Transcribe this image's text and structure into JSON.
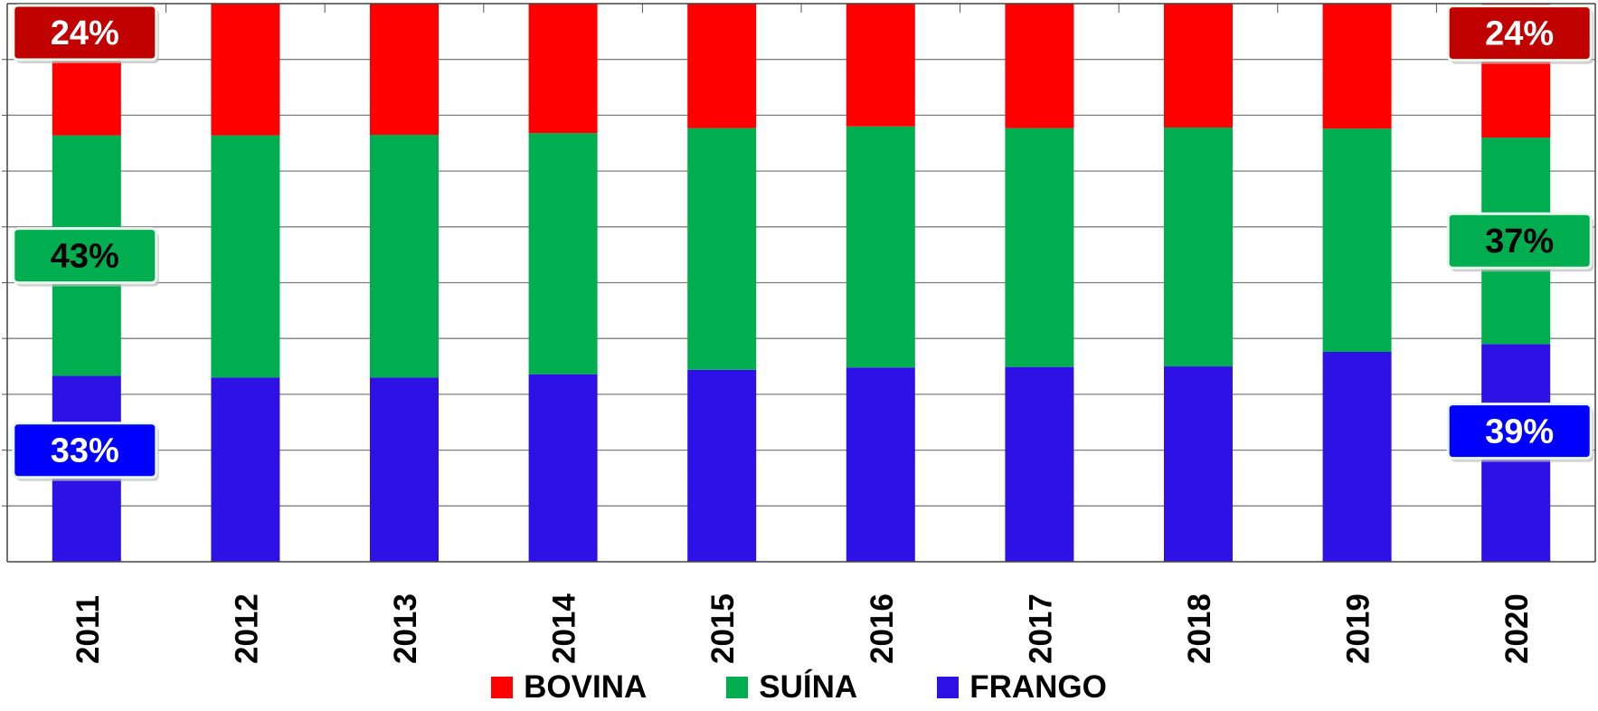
{
  "chart_data": {
    "type": "bar",
    "stacked": true,
    "normalized": true,
    "categories": [
      "2011",
      "2012",
      "2013",
      "2014",
      "2015",
      "2016",
      "2017",
      "2018",
      "2019",
      "2020"
    ],
    "series": [
      {
        "name": "FRANGO",
        "color": "#2E12E5",
        "values": [
          0.333,
          0.33,
          0.33,
          0.336,
          0.344,
          0.348,
          0.349,
          0.35,
          0.376,
          0.39
        ]
      },
      {
        "name": "SUÍNA",
        "color": "#00AE4F",
        "values": [
          0.431,
          0.434,
          0.435,
          0.432,
          0.433,
          0.432,
          0.428,
          0.428,
          0.4,
          0.37
        ]
      },
      {
        "name": "BOVINA",
        "color": "#FF0000",
        "values": [
          0.236,
          0.236,
          0.235,
          0.232,
          0.223,
          0.22,
          0.223,
          0.222,
          0.224,
          0.24
        ]
      }
    ],
    "ylim": [
      0,
      1
    ],
    "grid": true,
    "legend_position": "bottom",
    "annotations": [
      {
        "category": "2011",
        "series": "BOVINA",
        "text": "24%",
        "bg": "#C10000",
        "color": "#ffffff"
      },
      {
        "category": "2011",
        "series": "SUÍNA",
        "text": "43%",
        "bg": "#00AE4F",
        "color": "#000000"
      },
      {
        "category": "2011",
        "series": "FRANGO",
        "text": "33%",
        "bg": "#0000FF",
        "color": "#ffffff"
      },
      {
        "category": "2020",
        "series": "BOVINA",
        "text": "24%",
        "bg": "#C10000",
        "color": "#ffffff"
      },
      {
        "category": "2020",
        "series": "SUÍNA",
        "text": "37%",
        "bg": "#00AE4F",
        "color": "#000000"
      },
      {
        "category": "2020",
        "series": "FRANGO",
        "text": "39%",
        "bg": "#0000FF",
        "color": "#ffffff"
      }
    ]
  },
  "legend": [
    {
      "label": "BOVINA",
      "color": "#FF0000"
    },
    {
      "label": "SUÍNA",
      "color": "#00AE4F"
    },
    {
      "label": "FRANGO",
      "color": "#2E12E5"
    }
  ]
}
